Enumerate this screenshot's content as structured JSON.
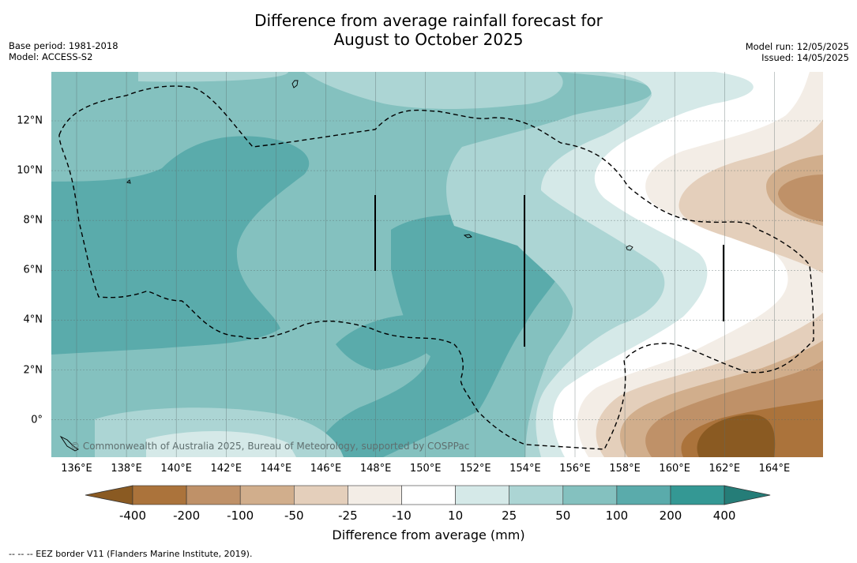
{
  "title_line1": "Difference from average rainfall forecast for",
  "title_line2": "August to October 2025",
  "meta_left": [
    "Base period: 1981-2018",
    "Model: ACCESS-S2"
  ],
  "meta_right": [
    "Model run: 12/05/2025",
    "Issued: 14/05/2025"
  ],
  "lon_labels": [
    "136°E",
    "138°E",
    "140°E",
    "142°E",
    "144°E",
    "146°E",
    "148°E",
    "150°E",
    "152°E",
    "154°E",
    "156°E",
    "158°E",
    "160°E",
    "162°E",
    "164°E"
  ],
  "lat_labels": [
    "12°N",
    "10°N",
    "8°N",
    "6°N",
    "4°N",
    "2°N",
    "0°"
  ],
  "copyright": "© Commonwealth of Australia 2025, Bureau of Meteorology, supported by COSPPac",
  "colorbar": {
    "title": "Difference from average (mm)",
    "tick_labels": [
      "-400",
      "-200",
      "-100",
      "-50",
      "-25",
      "-10",
      "10",
      "25",
      "50",
      "100",
      "200",
      "400"
    ],
    "colors": [
      "#8a5a22",
      "#ab733b",
      "#bf9168",
      "#d1ae8c",
      "#e4cfbb",
      "#f3ede6",
      "#ffffff",
      "#d5e9e8",
      "#acd5d4",
      "#84c1bf",
      "#5aabab",
      "#349894",
      "#257d78"
    ]
  },
  "footnote": "-- -- -- EEZ border V11 (Flanders Marine Institute, 2019)."
}
